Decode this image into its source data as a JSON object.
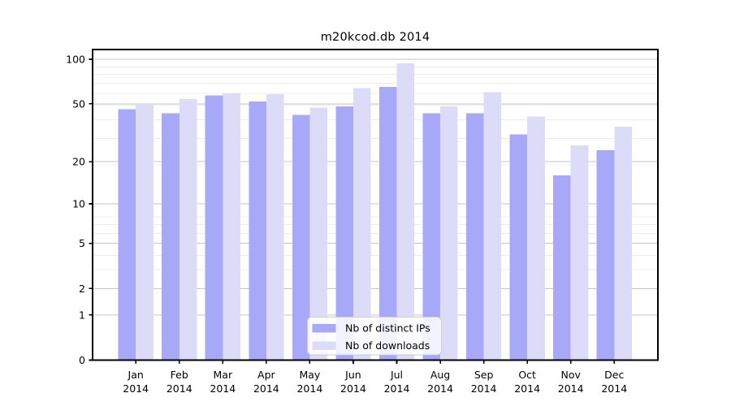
{
  "chart_data": {
    "type": "bar",
    "title": "m20kcod.db 2014",
    "categories": [
      "Jan",
      "Feb",
      "Mar",
      "Apr",
      "May",
      "Jun",
      "Jul",
      "Aug",
      "Sep",
      "Oct",
      "Nov",
      "Dec"
    ],
    "category_year_label": "2014",
    "series": [
      {
        "name": "Nb of distinct IPs",
        "color": "#a8a8f8",
        "values": [
          46,
          43,
          57,
          52,
          42,
          48,
          65,
          43,
          43,
          31,
          16,
          24
        ]
      },
      {
        "name": "Nb of downloads",
        "color": "#dcdcf8",
        "values": [
          50,
          54,
          59,
          58,
          47,
          64,
          94,
          48,
          60,
          41,
          26,
          35
        ]
      }
    ],
    "xlabel": "",
    "ylabel": "",
    "y_axis": {
      "scale": "log10(value+1) with 0 at baseline",
      "ticks": [
        100,
        50,
        20,
        10,
        5,
        2,
        1,
        0
      ],
      "minor_ticks": [
        1,
        2,
        3,
        4,
        5,
        6,
        7,
        8,
        19,
        29,
        39,
        49,
        59,
        69,
        79,
        89
      ],
      "range_top": 116
    },
    "legend": {
      "position": "bottom-center",
      "items": [
        "Nb of distinct IPs",
        "Nb of downloads"
      ]
    },
    "grid": "horizontal major + minor"
  },
  "colors": {
    "bar_distinct_ips": "#a8a8f8",
    "bar_downloads": "#dcdcf8",
    "grid_major": "#c6c6c6",
    "grid_minor": "#ececec",
    "axis": "#000000",
    "legend_border": "#cccccc",
    "background": "#ffffff"
  }
}
